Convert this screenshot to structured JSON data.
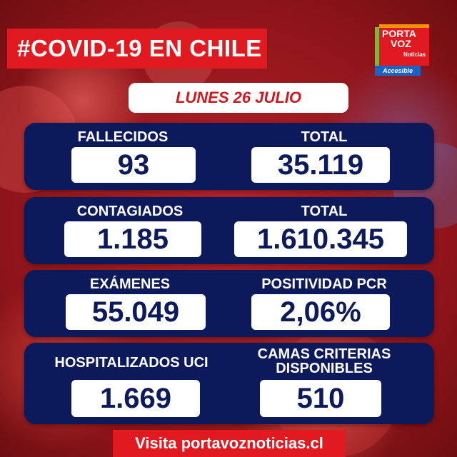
{
  "header": {
    "title": "#COVID-19 EN CHILE"
  },
  "logo": {
    "line1": "PORTA",
    "line2": "VOZ",
    "sub": "Noticias",
    "badge": "Accesible"
  },
  "date": "LUNES 26 JULIO",
  "stats": {
    "fallecidos": {
      "label": "FALLECIDOS",
      "value": "93"
    },
    "fallecidos_total": {
      "label": "TOTAL",
      "value": "35.119"
    },
    "contagiados": {
      "label": "CONTAGIADOS",
      "value": "1.185"
    },
    "contagiados_total": {
      "label": "TOTAL",
      "value": "1.610.345"
    },
    "examenes": {
      "label": "EXÁMENES",
      "value": "55.049"
    },
    "positividad": {
      "label": "POSITIVIDAD PCR",
      "value": "2,06%"
    },
    "hospitalizados": {
      "label": "HOSPITALIZADOS UCI",
      "value": "1.669"
    },
    "camas": {
      "label_line1": "CAMAS CRITERIAS",
      "label_line2": "DISPONIBLES",
      "value": "510"
    }
  },
  "footer": {
    "text": "Visita portavoznoticias.cl"
  },
  "colors": {
    "brand_red": "#e11a21",
    "panel_navy": "#0c1a5c",
    "logo_blue": "#1b63c4",
    "logo_green": "#79b83b",
    "logo_orange": "#f39300"
  }
}
